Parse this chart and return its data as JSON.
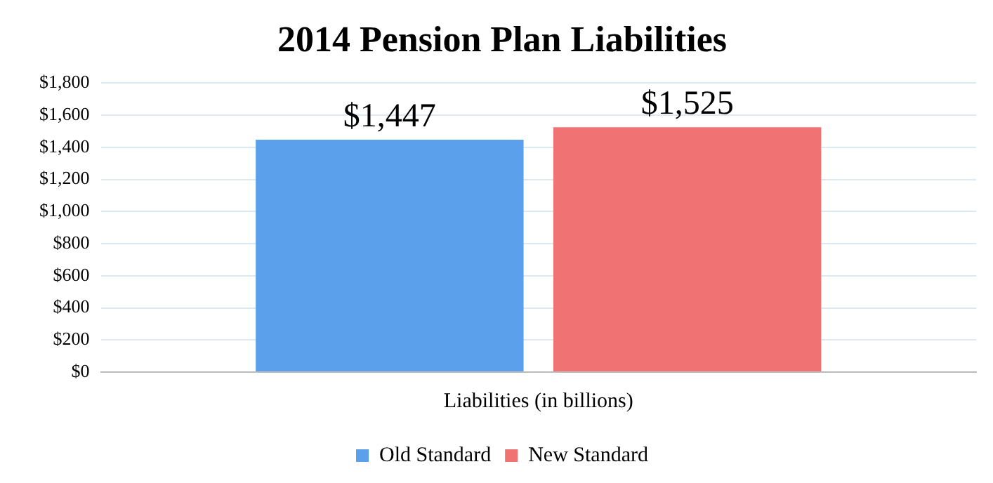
{
  "chart_data": {
    "type": "bar",
    "title": "2014 Pension Plan Liabilities",
    "categories": [
      "Liabilities (in billions)"
    ],
    "series": [
      {
        "name": "Old Standard",
        "color": "#5aa0ea",
        "values": [
          1447
        ],
        "value_labels": [
          "$1,447"
        ]
      },
      {
        "name": "New Standard",
        "color": "#f07272",
        "values": [
          1525
        ],
        "value_labels": [
          "$1,525"
        ]
      }
    ],
    "ylim": [
      0,
      1800
    ],
    "yticks": [
      {
        "value": 0,
        "label": "$0"
      },
      {
        "value": 200,
        "label": "$200"
      },
      {
        "value": 400,
        "label": "$400"
      },
      {
        "value": 600,
        "label": "$600"
      },
      {
        "value": 800,
        "label": "$800"
      },
      {
        "value": 1000,
        "label": "$1,000"
      },
      {
        "value": 1200,
        "label": "$1,200"
      },
      {
        "value": 1400,
        "label": "$1,400"
      },
      {
        "value": 1600,
        "label": "$1,600"
      },
      {
        "value": 1800,
        "label": "$1,800"
      }
    ],
    "grid": "y",
    "legend": "bottom"
  }
}
